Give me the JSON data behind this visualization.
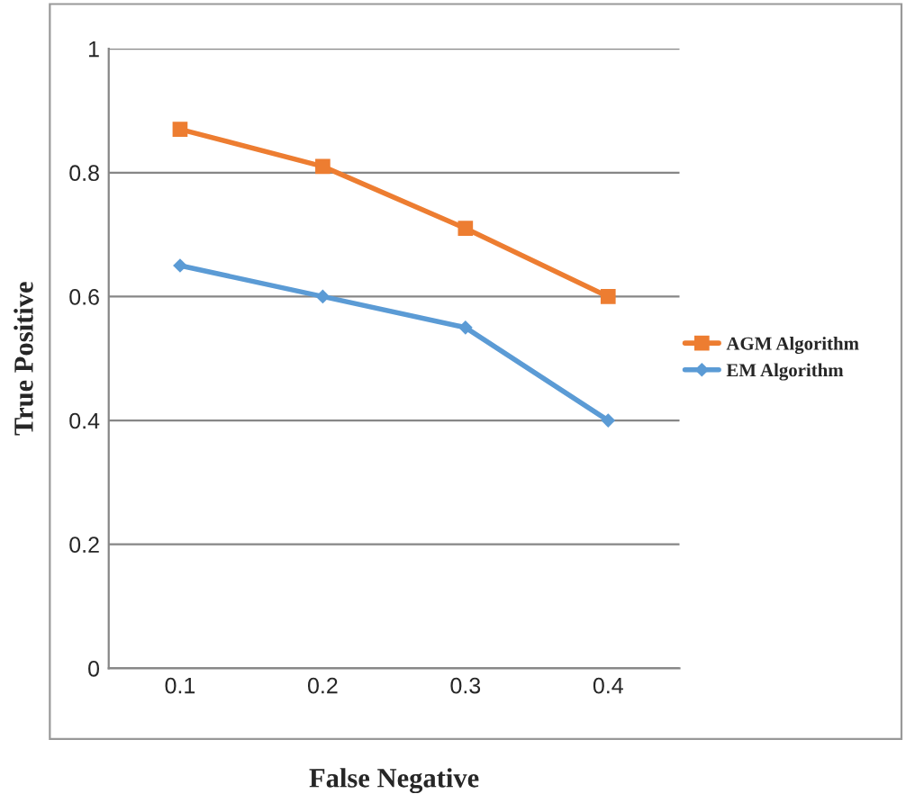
{
  "chart_data": {
    "type": "line",
    "xlabel": "False Negative",
    "ylabel": "True Positive",
    "categories": [
      "0.1",
      "0.2",
      "0.3",
      "0.4"
    ],
    "series": [
      {
        "name": "AGM Algorithm",
        "color": "#ed7d31",
        "marker": "square",
        "values": [
          0.87,
          0.81,
          0.71,
          0.6
        ]
      },
      {
        "name": "EM Algorithm",
        "color": "#5b9bd5",
        "marker": "diamond",
        "values": [
          0.65,
          0.6,
          0.55,
          0.4
        ]
      }
    ],
    "ylim": [
      0,
      1
    ],
    "yticks": [
      0,
      0.2,
      0.4,
      0.6,
      0.8,
      1
    ],
    "grid": "y",
    "legend": "right"
  }
}
